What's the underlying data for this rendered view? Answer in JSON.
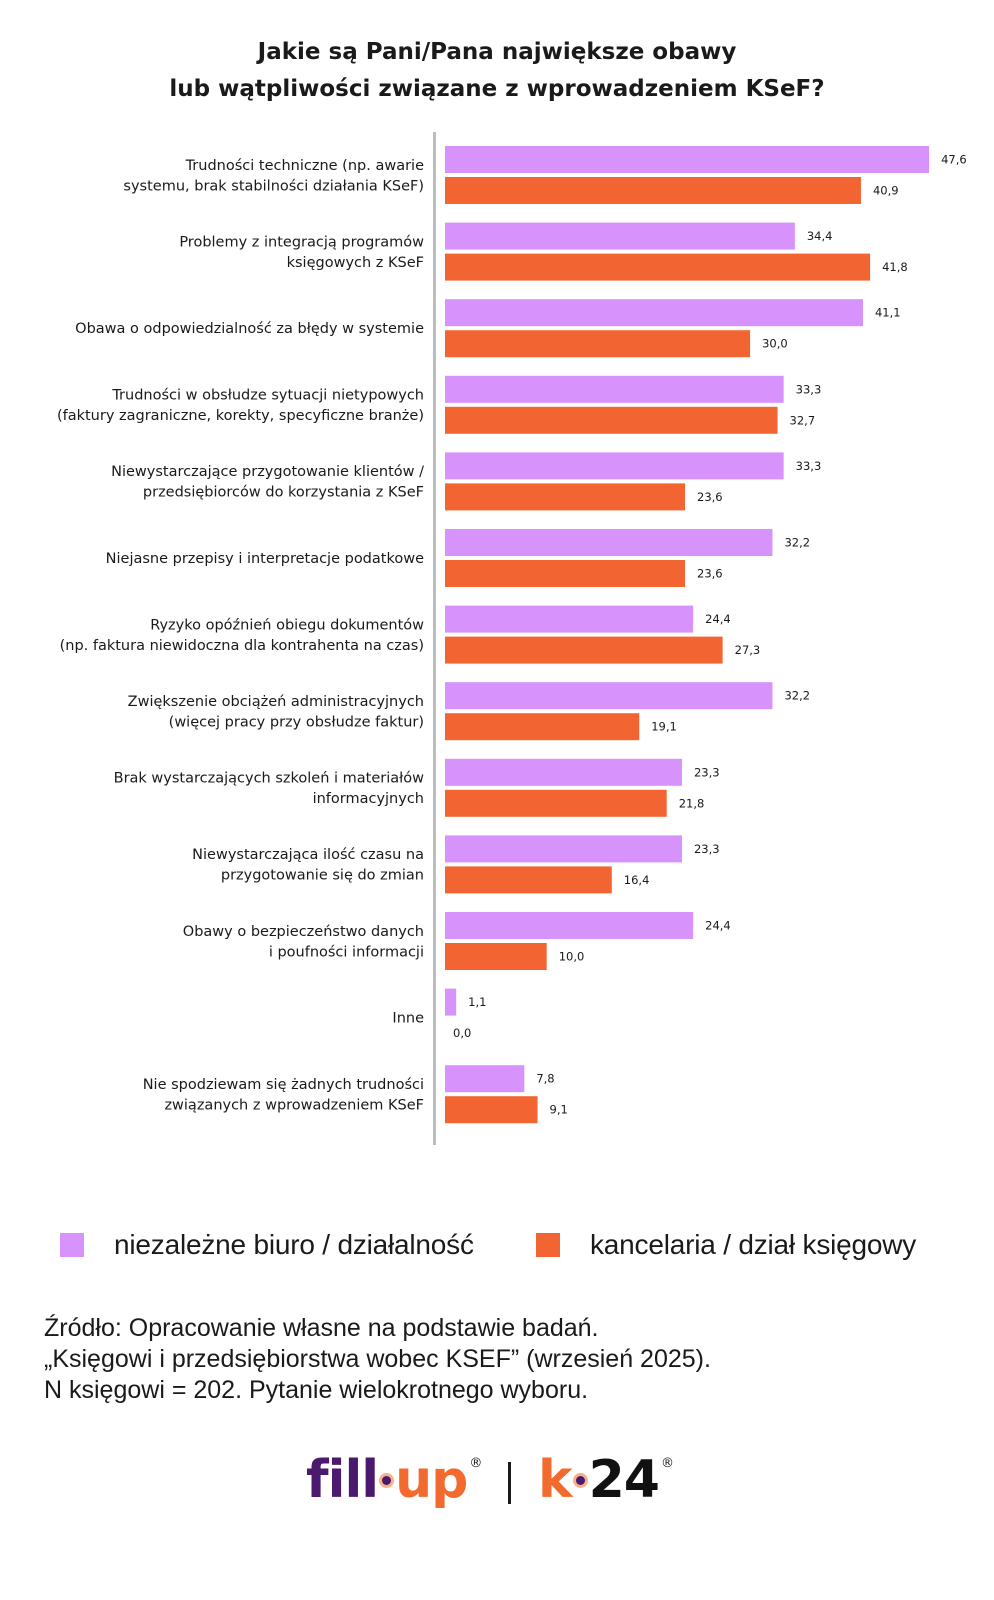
{
  "colors": {
    "series1": "#d892fb",
    "series2": "#f26532",
    "axis": "#bdbdbd"
  },
  "chart_data": {
    "type": "bar",
    "orientation": "horizontal",
    "title": "Jakie są Pani/Pana największe obawy lub wątpliwości związane z wprowadzeniem KSeF?",
    "title_lines": [
      "Jakie są Pani/Pana największe obawy",
      "lub wątpliwości związane z wprowadzeniem KSeF?"
    ],
    "xlabel": "",
    "ylabel": "",
    "xlim": [
      0,
      50
    ],
    "grid": false,
    "legend_position": "bottom",
    "categories": [
      [
        "Trudności techniczne (np. awarie",
        "systemu, brak stabilności działania KSeF)"
      ],
      [
        "Problemy z integracją programów",
        "księgowych z KSeF"
      ],
      [
        "Obawa o odpowiedzialność za błędy w systemie"
      ],
      [
        "Trudności w obsłudze sytuacji nietypowych",
        "(faktury zagraniczne, korekty, specyficzne branże)"
      ],
      [
        "Niewystarczające przygotowanie klientów /",
        "przedsiębiorców do korzystania z KSeF"
      ],
      [
        "Niejasne przepisy i interpretacje podatkowe"
      ],
      [
        "Ryzyko opóźnień obiegu dokumentów",
        "(np. faktura niewidoczna dla kontrahenta na czas)"
      ],
      [
        "Zwiększenie obciążeń administracyjnych",
        "(więcej pracy przy obsłudze faktur)"
      ],
      [
        "Brak wystarczających szkoleń i materiałów",
        "informacyjnych"
      ],
      [
        "Niewystarczająca ilość czasu na",
        "przygotowanie się do zmian"
      ],
      [
        "Obawy o bezpieczeństwo danych",
        "i poufności informacji"
      ],
      [
        "Inne"
      ],
      [
        "Nie spodziewam się żadnych trudności",
        "związanych z wprowadzeniem KSeF"
      ]
    ],
    "series": [
      {
        "name": "niezależne biuro / działalność",
        "color": "#d892fb",
        "values": [
          47.6,
          34.4,
          41.1,
          33.3,
          33.3,
          32.2,
          24.4,
          32.2,
          23.3,
          23.3,
          24.4,
          1.1,
          7.8
        ],
        "labels": [
          "47,6",
          "34,4",
          "41,1",
          "33,3",
          "33,3",
          "32,2",
          "24,4",
          "32,2",
          "23,3",
          "23,3",
          "24,4",
          "1,1",
          "7,8"
        ]
      },
      {
        "name": "kancelaria / dział księgowy",
        "color": "#f26532",
        "values": [
          40.9,
          41.8,
          30.0,
          32.7,
          23.6,
          23.6,
          27.3,
          19.1,
          21.8,
          16.4,
          10.0,
          0.0,
          9.1
        ],
        "labels": [
          "40,9",
          "41,8",
          "30,0",
          "32,7",
          "23,6",
          "23,6",
          "27,3",
          "19,1",
          "21,8",
          "16,4",
          "10,0",
          "0,0",
          "9,1"
        ]
      }
    ]
  },
  "legend": {
    "items": [
      {
        "label": "niezależne biuro / działalność",
        "color": "#d892fb"
      },
      {
        "label": "kancelaria / dział księgowy",
        "color": "#f26532"
      }
    ]
  },
  "source": {
    "lines": [
      "Źródło: Opracowanie własne na podstawie badań.",
      "„Księgowi i przedsiębiorstwa wobec KSEF” (wrzesień 2025).",
      "N księgowi = 202. Pytanie wielokrotnego wyboru."
    ]
  },
  "logos": {
    "fillup_part1": "fill",
    "fillup_part2": "up",
    "k24_part1": "k",
    "k24_part2": "24",
    "registered": "®"
  }
}
